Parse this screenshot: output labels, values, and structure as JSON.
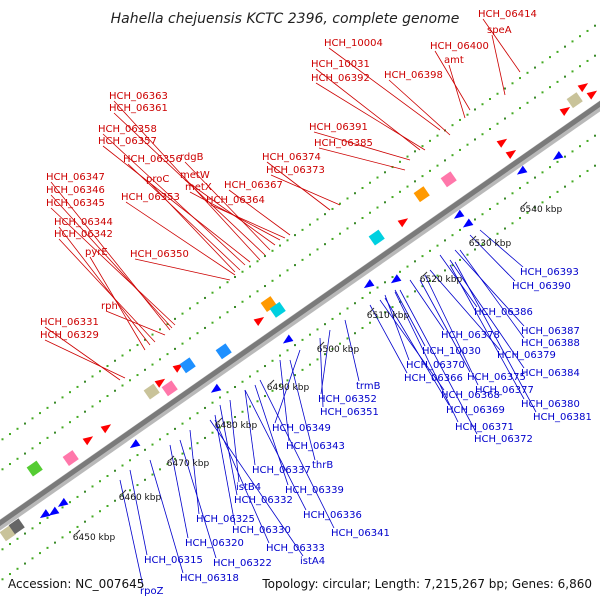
{
  "title": "Hahella chejuensis KCTC 2396, complete genome",
  "accession_text": "Accession: NC_007645",
  "summary_text": "Topology: circular; Length: 7,215,267 bp; Genes: 6,860",
  "colors": {
    "top": "#cc0000",
    "bottom": "#0000cc",
    "forward": "#ff0000",
    "reverse": "#0000ff",
    "backbone": "#888888"
  },
  "ticks": [
    "6450 kbp",
    "6460 kbp",
    "6470 kbp",
    "6480 kbp",
    "6490 kbp",
    "6500 kbp",
    "6510 kbp",
    "6520 kbp",
    "6530 kbp",
    "6540 kbp"
  ],
  "top_labels": [
    "HCH_06414",
    "speA",
    "HCH_10004",
    "HCH_06400",
    "amt",
    "HCH_10031",
    "HCH_06392",
    "HCH_06398",
    "HCH_06363",
    "HCH_06361",
    "HCH_06391",
    "HCH_06358",
    "HCH_06357",
    "HCH_06385",
    "rdgB",
    "HCH_06356",
    "HCH_06374",
    "HCH_06373",
    "metW",
    "proC",
    "metX",
    "HCH_06367",
    "HCH_06347",
    "HCH_06346",
    "HCH_06353",
    "HCH_06364",
    "HCH_06345",
    "HCH_06344",
    "HCH_06342",
    "pyrE",
    "HCH_06350",
    "rph",
    "HCH_06331",
    "HCH_06329"
  ],
  "bottom_labels": [
    "HCH_06393",
    "HCH_06390",
    "HCH_06386",
    "HCH_06387",
    "HCH_06388",
    "HCH_06378",
    "HCH_06379",
    "HCH_10030",
    "HCH_06370",
    "HCH_06384",
    "HCH_06375",
    "HCH_06366",
    "HCH_06377",
    "trmB",
    "HCH_06368",
    "HCH_06380",
    "HCH_06352",
    "HCH_06381",
    "HCH_06369",
    "HCH_06351",
    "HCH_06371",
    "HCH_06349",
    "HCH_06372",
    "HCH_06343",
    "thrB",
    "HCH_06337",
    "istB4",
    "HCH_06339",
    "HCH_06332",
    "HCH_06336",
    "HCH_06341",
    "HCH_06325",
    "HCH_06330",
    "HCH_06320",
    "HCH_06333",
    "HCH_06322",
    "istA4",
    "HCH_06315",
    "HCH_06318",
    "rpoZ"
  ]
}
